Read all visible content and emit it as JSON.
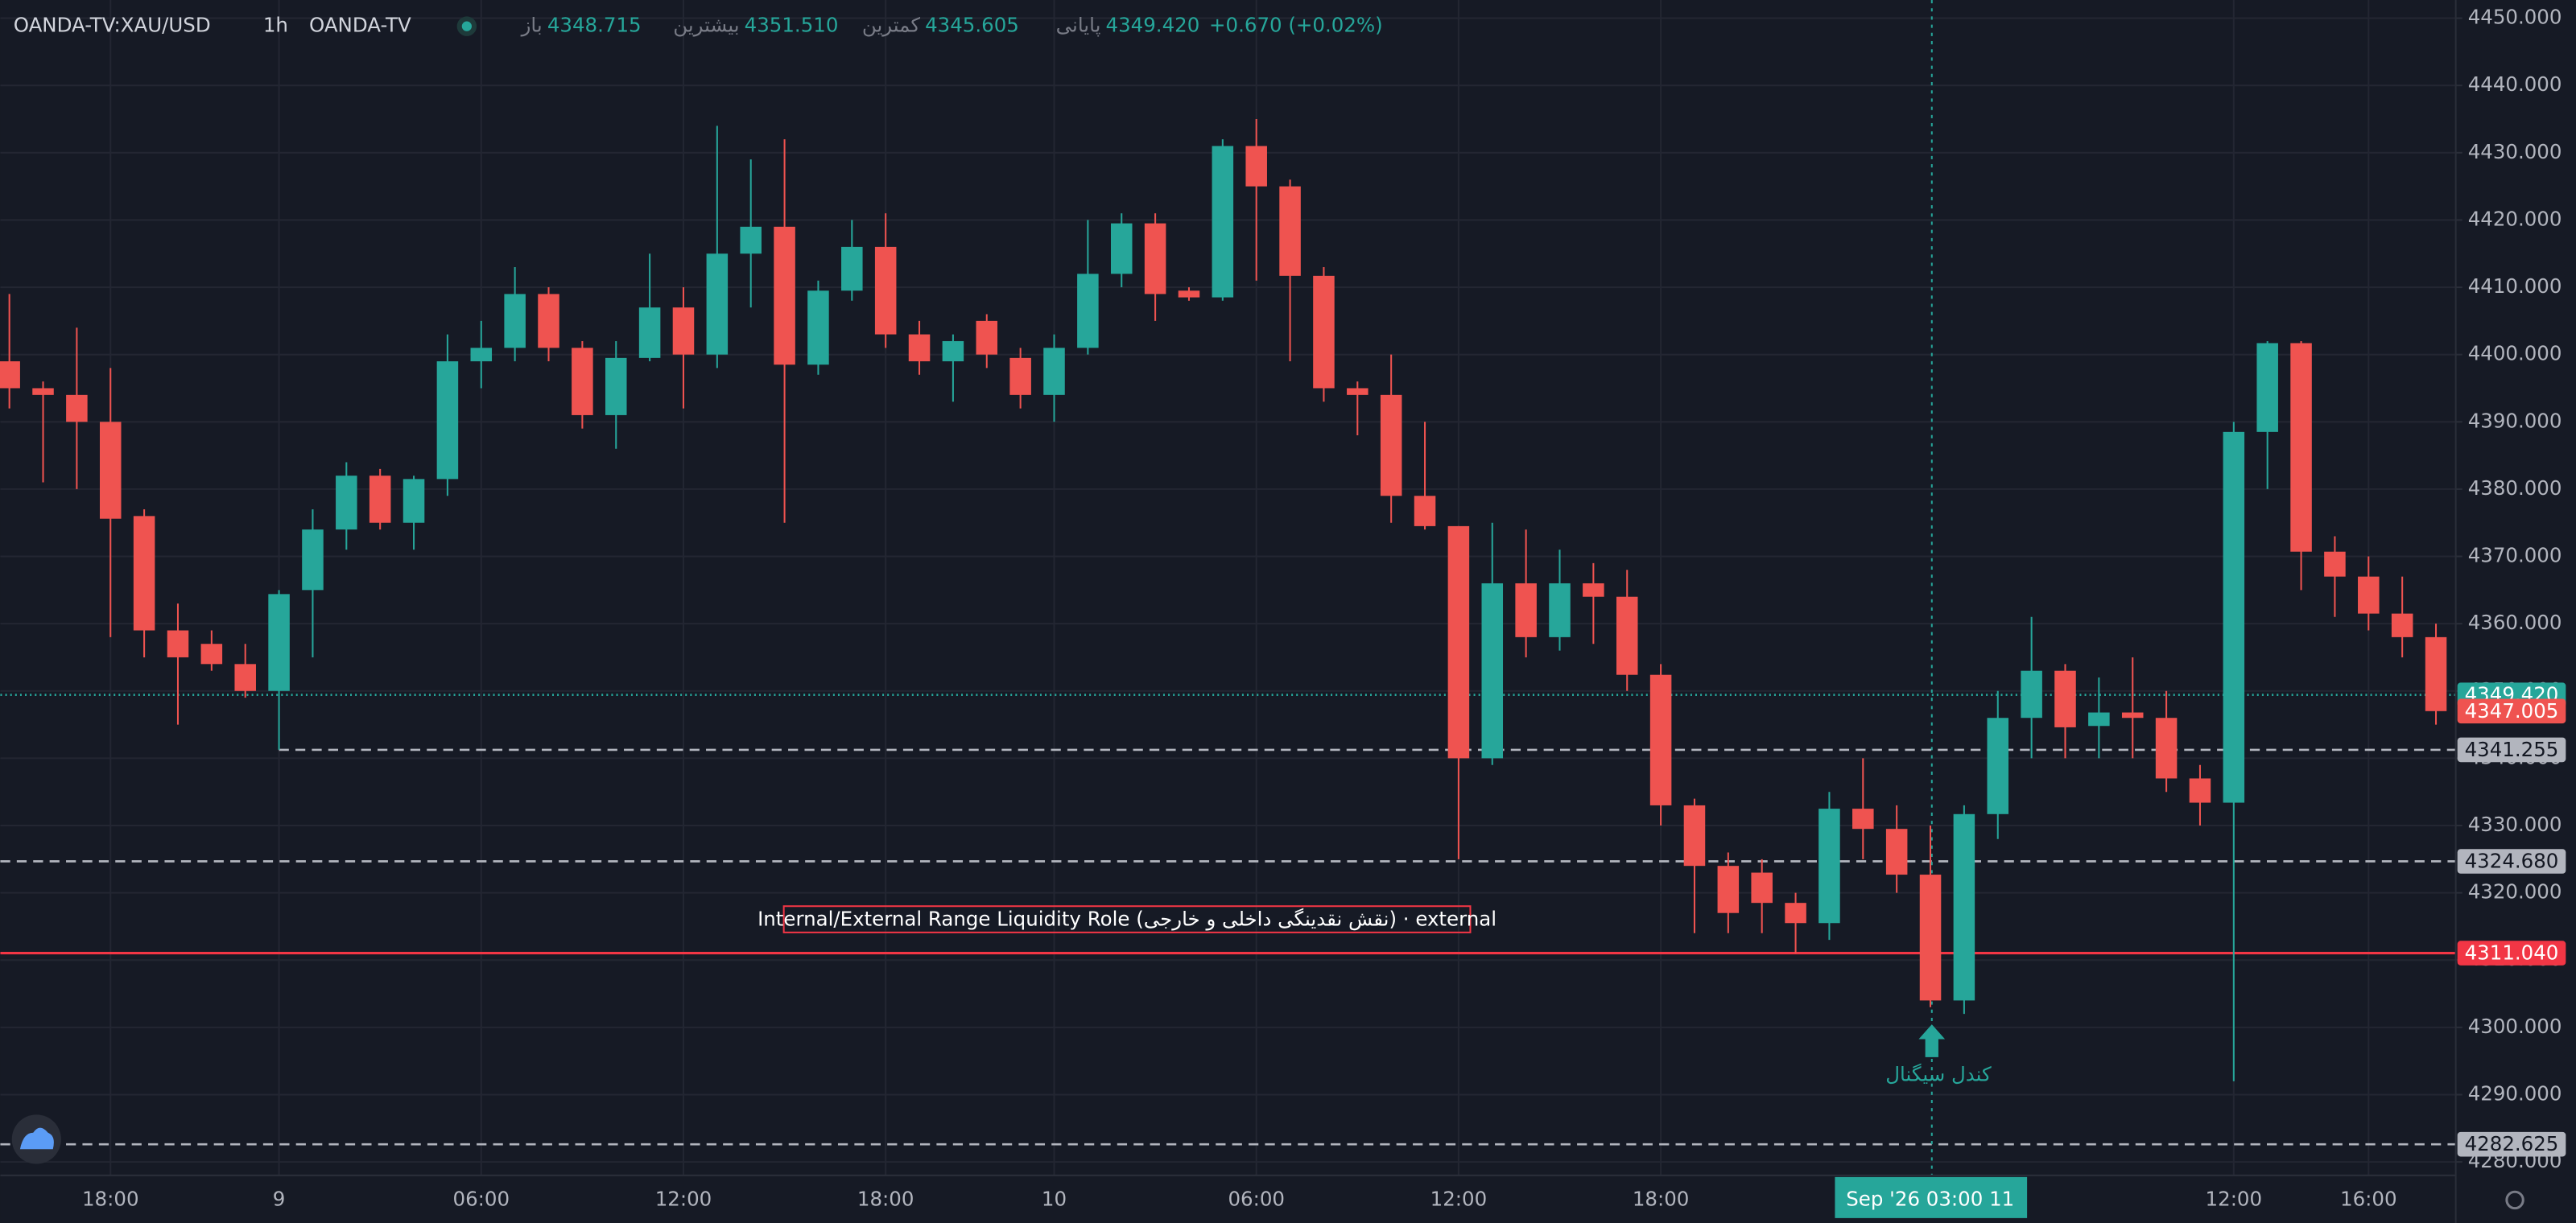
{
  "header": {
    "symbol": "OANDA-TV:XAU/USD",
    "interval": "1h",
    "source": "OANDA-TV",
    "ohlc": [
      {
        "label": "باز",
        "value": "4348.715"
      },
      {
        "label": "بیشترین",
        "value": "4351.510"
      },
      {
        "label": "کمترین",
        "value": "4345.605"
      },
      {
        "label": "پایانی",
        "value": "4349.420"
      }
    ],
    "change": "+0.670 (+0.02%)"
  },
  "chart_data": {
    "type": "candlestick",
    "up_color": "#26a69a",
    "down_color": "#ef5350",
    "categories": [
      null,
      null,
      null,
      "18:00",
      null,
      null,
      null,
      null,
      "9",
      null,
      null,
      null,
      null,
      null,
      "06:00",
      null,
      null,
      null,
      null,
      null,
      "12:00",
      null,
      null,
      null,
      null,
      null,
      "18:00",
      null,
      null,
      null,
      null,
      "10",
      null,
      null,
      null,
      null,
      null,
      "06:00",
      null,
      null,
      null,
      null,
      null,
      "12:00",
      null,
      null,
      null,
      null,
      null,
      "18:00",
      null,
      null,
      null,
      null,
      null,
      null,
      null,
      null,
      null,
      null,
      null,
      null,
      null,
      null,
      null,
      null,
      "12:00",
      null,
      null,
      null,
      "16:00",
      null,
      null
    ],
    "open": [
      4399,
      4395,
      4394,
      4390,
      4376,
      4359,
      4357,
      4354,
      4350,
      4365,
      4374,
      4382,
      4375,
      4381.5,
      4399,
      4401,
      4409,
      4401,
      4391,
      4399.5,
      4407,
      4400,
      4415,
      4419,
      4398.5,
      4409.5,
      4416,
      4403,
      4399,
      4405,
      4399.5,
      4394,
      4401,
      4412,
      4419.5,
      4409.5,
      4408.5,
      4431,
      4425,
      4411.7,
      4395,
      4394,
      4379,
      4374.5,
      4340,
      4366,
      4358,
      4366,
      4364,
      4352.4,
      4333,
      4324,
      4323,
      4318.5,
      4315.5,
      4332.5,
      4329.5,
      4322.7,
      4304,
      4331.7,
      4346,
      4353,
      4344.8,
      4346.8,
      4346,
      4337,
      4333.4,
      4388.5,
      4401.7,
      4370.7,
      4367,
      4361.5,
      4358
    ],
    "high": [
      4409,
      4396,
      4404,
      4398,
      4377,
      4363,
      4359,
      4357,
      4365,
      4377,
      4384,
      4383,
      4382,
      4403,
      4405,
      4413,
      4410,
      4402,
      4402,
      4415,
      4410,
      4434,
      4429,
      4432,
      4411,
      4420,
      4421,
      4405,
      4403,
      4406,
      4401,
      4403,
      4420,
      4421,
      4421,
      4410,
      4432,
      4435,
      4426,
      4413,
      4396,
      4400,
      4390,
      4374.5,
      4375,
      4374,
      4371,
      4369,
      4368,
      4354,
      4334,
      4326,
      4325,
      4320,
      4335,
      4340,
      4333,
      4330,
      4333,
      4350,
      4361,
      4354,
      4352,
      4355,
      4350,
      4339,
      4390,
      4402,
      4402,
      4373,
      4370,
      4367,
      4360
    ],
    "low": [
      4392,
      4381,
      4380,
      4358,
      4355,
      4345,
      4353,
      4349,
      4341.255,
      4355,
      4371,
      4374,
      4371,
      4379,
      4395,
      4399,
      4399,
      4389,
      4386,
      4399,
      4392,
      4398,
      4407,
      4375,
      4397,
      4408,
      4401,
      4397,
      4393,
      4398,
      4392,
      4390,
      4400,
      4410,
      4405,
      4408,
      4408,
      4411,
      4399,
      4393,
      4388,
      4375,
      4374,
      4325,
      4339,
      4355,
      4356,
      4357,
      4350,
      4330,
      4314,
      4314,
      4314,
      4311,
      4313,
      4325,
      4320,
      4303,
      4302,
      4328,
      4340,
      4340,
      4340,
      4340,
      4335,
      4330,
      4292,
      4380,
      4365,
      4361,
      4359,
      4355,
      4345
    ],
    "close": [
      4395,
      4394,
      4390,
      4375.6,
      4359,
      4355,
      4354,
      4350,
      4364.4,
      4374,
      4382,
      4375,
      4381.5,
      4399,
      4401,
      4409,
      4401,
      4391,
      4399.5,
      4407,
      4400,
      4415,
      4419,
      4398.5,
      4409.5,
      4416,
      4403,
      4399,
      4402,
      4400,
      4394,
      4401,
      4412,
      4419.5,
      4409,
      4408.5,
      4431,
      4425,
      4411.7,
      4395,
      4394,
      4379,
      4374.5,
      4340,
      4366,
      4358,
      4366,
      4364,
      4352.4,
      4333,
      4324,
      4317,
      4318.5,
      4315.5,
      4332.5,
      4329.5,
      4322.7,
      4304,
      4331.7,
      4346,
      4353,
      4344.6,
      4346.8,
      4346,
      4337,
      4333.4,
      4388.5,
      4401.7,
      4370.7,
      4367,
      4361.5,
      4358,
      4347.005
    ],
    "ylim": [
      4278,
      4452.7
    ],
    "yticks": [
      {
        "value": 4280,
        "label": "4280.000"
      },
      {
        "value": 4290,
        "label": "4290.000"
      },
      {
        "value": 4300,
        "label": "4300.000"
      },
      {
        "value": 4310,
        "label": "4310.000"
      },
      {
        "value": 4320,
        "label": "4320.000"
      },
      {
        "value": 4330,
        "label": "4330.000"
      },
      {
        "value": 4340,
        "label": "4340.000"
      },
      {
        "value": 4350,
        "label": "4350.000"
      },
      {
        "value": 4360,
        "label": "4360.000"
      },
      {
        "value": 4370,
        "label": "4370.000"
      },
      {
        "value": 4380,
        "label": "4380.000"
      },
      {
        "value": 4390,
        "label": "4390.000"
      },
      {
        "value": 4400,
        "label": "4400.000"
      },
      {
        "value": 4410,
        "label": "4410.000"
      },
      {
        "value": 4420,
        "label": "4420.000"
      },
      {
        "value": 4430,
        "label": "4430.000"
      },
      {
        "value": 4440,
        "label": "4440.000"
      },
      {
        "value": 4450,
        "label": "4450.000"
      }
    ],
    "grid": true,
    "levels": [
      {
        "value": 4349.42,
        "label": "4349.420",
        "color": "#26a69a",
        "line": "dotted"
      },
      {
        "value": 4347.005,
        "label": "4347.005",
        "color": "#ef5350",
        "line": "none"
      },
      {
        "value": 4341.255,
        "label": "4341.255",
        "color": "#b2b5be",
        "line": "dashed"
      },
      {
        "value": 4324.68,
        "label": "4324.680",
        "color": "#b2b5be",
        "line": "dashed"
      },
      {
        "value": 4311.04,
        "label": "4311.040",
        "color": "#f23645",
        "line": "solid"
      },
      {
        "value": 4282.625,
        "label": "4282.625",
        "color": "#b2b5be",
        "line": "dashed"
      }
    ],
    "annotations": {
      "range_label": "Internal/External Range Liquidity Role (نقش نقدینگی داخلی و خارجی) · external",
      "signal": "کندل سیگنال",
      "crosshair_label": "Sep '26   03:00 11"
    }
  }
}
